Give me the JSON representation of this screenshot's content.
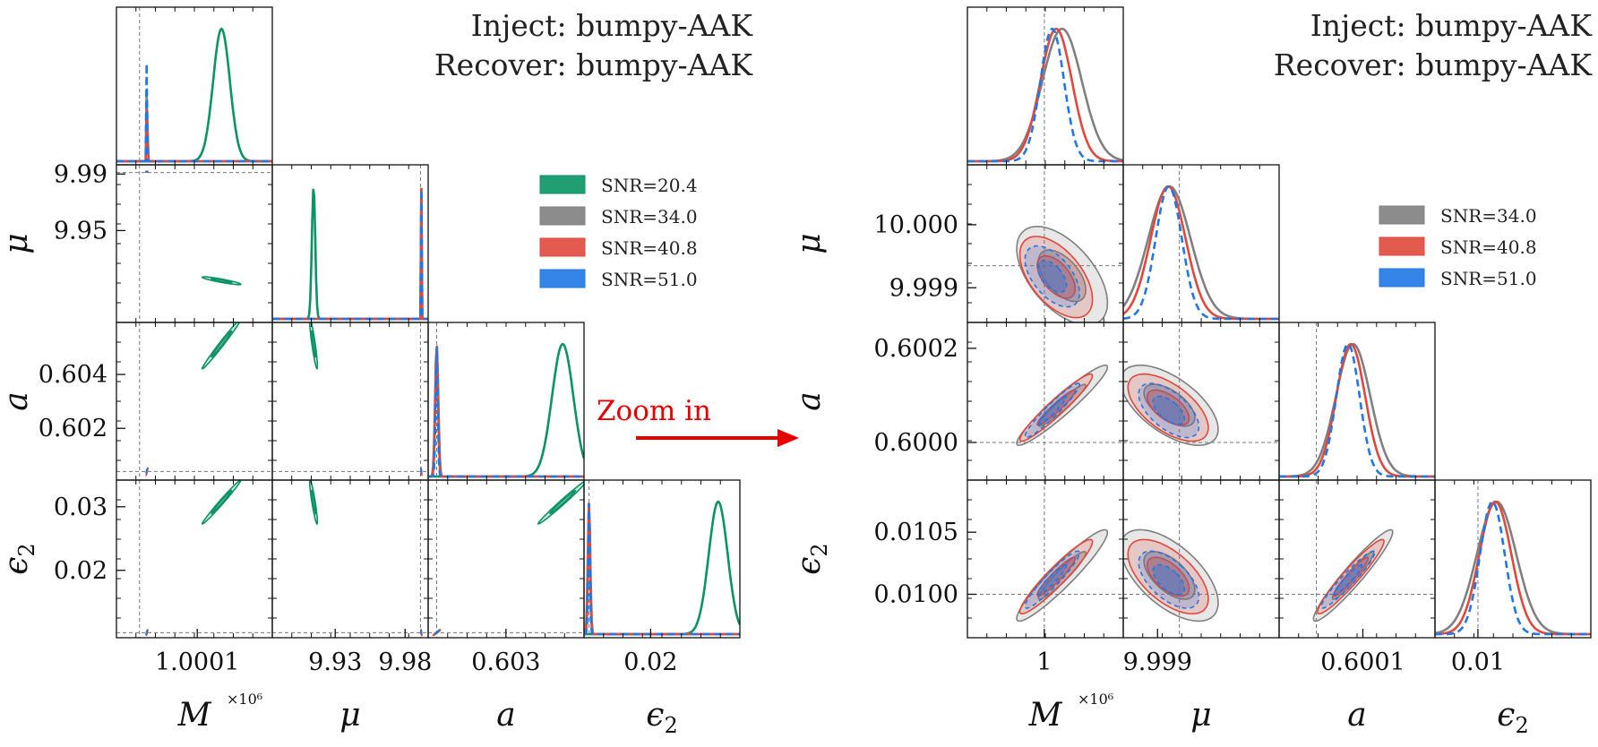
{
  "zoom_label": "Zoom in",
  "colors": {
    "snr20": "#0a9464",
    "snr34": "#808080",
    "snr40": "#e0483c",
    "snr51": "#1f78e6",
    "arrow": "#e60000"
  },
  "chart_data": [
    {
      "type": "corner",
      "name": "left",
      "title": [
        "Inject: bumpy-AAK",
        "Recover: bumpy-AAK"
      ],
      "params": [
        "M",
        "μ",
        "a",
        "ε2"
      ],
      "axis_labels": [
        "M",
        "μ",
        "a",
        "ϵ2"
      ],
      "multiplier_label": "×10⁶",
      "ranges": [
        [
          0.99996,
          1.00023
        ],
        [
          9.885,
          9.9965
        ],
        [
          0.60008,
          0.60593
        ],
        [
          0.0094,
          0.0342
        ]
      ],
      "injected": [
        1.0,
        9.991,
        0.6004,
        0.0102
      ],
      "ticks": [
        {
          "values": [
            1.0001
          ],
          "labels": [
            "1.0001"
          ]
        },
        {
          "values": [
            9.93,
            9.98
          ],
          "labels": [
            "9.93",
            "9.98"
          ]
        },
        {
          "values": [
            0.602,
            0.603,
            0.604
          ],
          "labels": [
            "0.602",
            "0.603",
            "0.604"
          ]
        },
        {
          "values": [
            0.02,
            0.03
          ],
          "labels": [
            "0.02",
            "0.03"
          ]
        }
      ],
      "bottom_ticks": [
        [
          "1.0001"
        ],
        [
          "9.93",
          "9.98"
        ],
        [
          "0.603"
        ],
        [
          "0.02"
        ]
      ],
      "left_ticks": [
        [],
        [
          "9.95",
          "9.99"
        ],
        [
          "0.602",
          "0.604"
        ],
        [
          "0.02",
          "0.03"
        ]
      ],
      "legend": [
        "SNR=20.4",
        "SNR=34.0",
        "SNR=40.8",
        "SNR=51.0"
      ],
      "series": [
        {
          "name": "SNR=20.4",
          "color": "#0a9464",
          "mean": [
            1.000142,
            9.9145,
            0.60513,
            0.03075
          ],
          "sd": [
            1.45e-05,
            0.0012,
            0.0004,
            0.0015
          ],
          "corr": [
            [
              1,
              -0.9,
              0.99,
              0.99
            ],
            [
              -0.9,
              1,
              -0.9,
              -0.9
            ],
            [
              0.99,
              -0.9,
              1,
              0.99
            ],
            [
              0.99,
              -0.9,
              0.99,
              1
            ]
          ],
          "style": "solid"
        },
        {
          "name": "SNR=34.0",
          "color": "#808080",
          "mean": [
            1.000013,
            9.9916,
            0.6004,
            0.0102
          ],
          "sd": [
            6e-07,
            0.00015,
            6e-05,
            0.0002
          ],
          "corr": [
            [
              1,
              -0.8,
              0.98,
              0.97
            ],
            [
              -0.8,
              1,
              -0.8,
              -0.8
            ],
            [
              0.98,
              -0.8,
              1,
              0.97
            ],
            [
              0.97,
              -0.8,
              0.97,
              1
            ]
          ],
          "style": "solid"
        },
        {
          "name": "SNR=40.8",
          "color": "#e0483c",
          "mean": [
            1.000013,
            9.9916,
            0.6004,
            0.0102
          ],
          "sd": [
            5e-07,
            0.00013,
            5e-05,
            0.00017
          ],
          "corr": [
            [
              1,
              -0.8,
              0.98,
              0.97
            ],
            [
              -0.8,
              1,
              -0.8,
              -0.8
            ],
            [
              0.98,
              -0.8,
              1,
              0.97
            ],
            [
              0.97,
              -0.8,
              0.97,
              1
            ]
          ],
          "style": "solid"
        },
        {
          "name": "SNR=51.0",
          "color": "#1f78e6",
          "mean": [
            1.000012,
            9.9916,
            0.6004,
            0.0102
          ],
          "sd": [
            4e-07,
            0.0001,
            4e-05,
            0.00014
          ],
          "corr": [
            [
              1,
              -0.8,
              0.98,
              0.97
            ],
            [
              -0.8,
              1,
              -0.8,
              -0.8
            ],
            [
              0.98,
              -0.8,
              1,
              0.97
            ],
            [
              0.97,
              -0.8,
              0.97,
              1
            ]
          ],
          "style": "dashed"
        }
      ]
    },
    {
      "type": "corner",
      "name": "right",
      "title": [
        "Inject: bumpy-AAK",
        "Recover: bumpy-AAK"
      ],
      "params": [
        "M",
        "μ",
        "a",
        "ε2"
      ],
      "axis_labels": [
        "M",
        "μ",
        "a",
        "ϵ2"
      ],
      "multiplier_label": "×10⁶",
      "ranges": [
        [
          0.9999961,
          1.000004
        ],
        [
          9.99845,
          10.00095
        ],
        [
          0.59992,
          0.600255
        ],
        [
          0.00965,
          0.01092
        ]
      ],
      "injected": [
        1.0,
        9.99935,
        0.6,
        0.01
      ],
      "ticks": [
        {
          "values": [
            1.0
          ],
          "labels": [
            "1"
          ]
        },
        {
          "values": [
            9.999,
            10.0
          ],
          "labels": [
            "9.999",
            "10.000"
          ]
        },
        {
          "values": [
            0.6,
            0.6001,
            0.6002
          ],
          "labels": [
            "0.6000",
            "0.6001",
            "0.6002"
          ]
        },
        {
          "values": [
            0.01,
            0.0105
          ],
          "labels": [
            "0.0100",
            "0.0105"
          ]
        }
      ],
      "bottom_ticks": [
        [
          "1"
        ],
        [
          "9.999"
        ],
        [
          "0.6001"
        ],
        [
          "0.01"
        ]
      ],
      "left_ticks": [
        [],
        [
          "10.000",
          "9.999"
        ],
        [
          "0.6002",
          "0.6000"
        ],
        [
          "0.0105",
          "0.0100"
        ]
      ],
      "legend": [
        "SNR=34.0",
        "SNR=40.8",
        "SNR=51.0"
      ],
      "series": [
        {
          "name": "SNR=34.0",
          "color": "#808080",
          "mean": [
            1.0000009,
            9.99919,
            0.600079,
            0.010152
          ],
          "sd": [
            1e-06,
            0.00034,
            3.7e-05,
            0.00016
          ],
          "corr": [
            [
              1,
              -0.55,
              0.95,
              0.94
            ],
            [
              -0.55,
              1,
              -0.6,
              -0.6
            ],
            [
              0.95,
              -0.6,
              1,
              0.95
            ],
            [
              0.94,
              -0.6,
              0.95,
              1
            ]
          ],
          "style": "solid"
        },
        {
          "name": "SNR=40.8",
          "color": "#e0483c",
          "mean": [
            1.0000006,
            9.99917,
            0.600074,
            0.010142
          ],
          "sd": [
            8e-07,
            0.00028,
            3.1e-05,
            0.00013
          ],
          "corr": [
            [
              1,
              -0.55,
              0.95,
              0.94
            ],
            [
              -0.55,
              1,
              -0.6,
              -0.6
            ],
            [
              0.95,
              -0.6,
              1,
              0.95
            ],
            [
              0.94,
              -0.6,
              0.95,
              1
            ]
          ],
          "style": "solid"
        },
        {
          "name": "SNR=51.0",
          "color": "#1f78e6",
          "mean": [
            1.0000004,
            9.99918,
            0.600068,
            0.010118
          ],
          "sd": [
            6e-07,
            0.00021,
            2.5e-05,
            0.0001
          ],
          "corr": [
            [
              1,
              -0.55,
              0.95,
              0.94
            ],
            [
              -0.55,
              1,
              -0.6,
              -0.6
            ],
            [
              0.95,
              -0.6,
              1,
              0.95
            ],
            [
              0.94,
              -0.6,
              0.95,
              1
            ]
          ],
          "style": "dashed"
        }
      ]
    }
  ]
}
